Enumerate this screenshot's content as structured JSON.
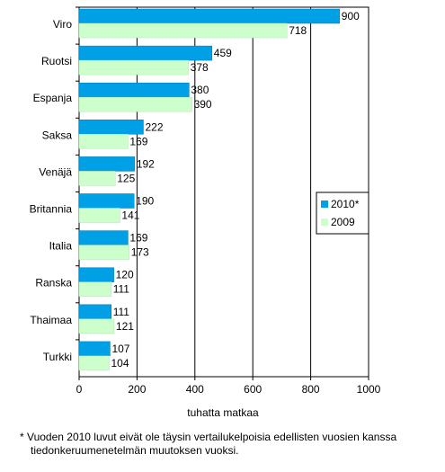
{
  "chart_data": {
    "type": "bar",
    "orientation": "horizontal",
    "categories": [
      "Viro",
      "Ruotsi",
      "Espanja",
      "Saksa",
      "Venäjä",
      "Britannia",
      "Italia",
      "Ranska",
      "Thaimaa",
      "Turkki"
    ],
    "series": [
      {
        "name": "2010*",
        "color": "#00a0e6",
        "values": [
          900,
          459,
          380,
          222,
          192,
          190,
          169,
          120,
          111,
          107
        ]
      },
      {
        "name": "2009",
        "color": "#ccffcc",
        "values": [
          718,
          378,
          390,
          169,
          125,
          141,
          173,
          111,
          121,
          104
        ]
      }
    ],
    "xlabel": "tuhatta matkaa",
    "xlim": [
      0,
      1000
    ],
    "xticks": [
      0,
      200,
      400,
      600,
      800,
      1000
    ],
    "grid": "vertical",
    "legend_position": "right-center"
  },
  "footnote": {
    "line1": "* Vuoden 2010 luvut eivät ole täysin vertailukelpoisia edellisten vuosien kanssa",
    "line2": "tiedonkeruumenetelmän muutoksen vuoksi."
  }
}
